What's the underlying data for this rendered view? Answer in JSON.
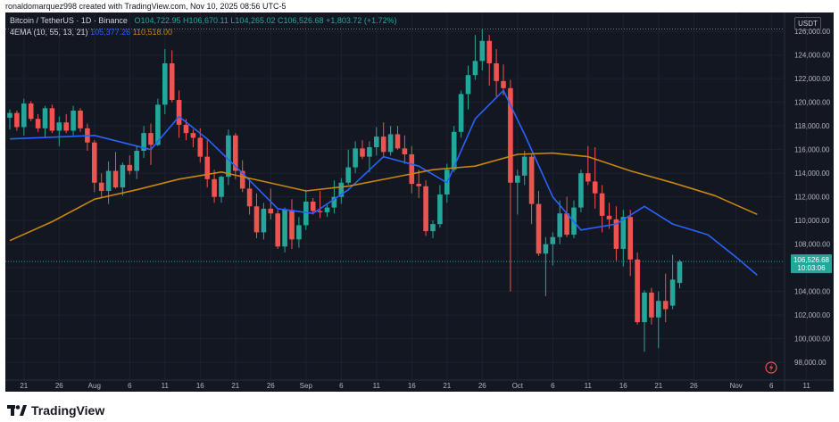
{
  "header": {
    "creator_line": "ronaldomarquez998 created with TradingView.com, Nov 10, 2025 08:56 UTC-5"
  },
  "legend": {
    "symbol": "Bitcoin / TetherUS · 1D · Binance",
    "open": "O104,722.95",
    "high": "H106,670.11",
    "low": "L104,265.02",
    "close": "C106,526.68",
    "change": "+1,803.72 (+1.72%)",
    "indicator": "4EMA (10, 55, 13, 21)",
    "ema_fast_value": "105,377.26",
    "ema_slow_value": "110,518.00"
  },
  "currency_button": "USDT",
  "price_label": {
    "price": "106,526.68",
    "countdown": "10:03:06"
  },
  "footer": {
    "brand": "TradingView"
  },
  "colors": {
    "background": "#131722",
    "up": "#26a69a",
    "down": "#ef5350",
    "ema_fast": "#2962ff",
    "ema_slow": "#c8860d",
    "grid": "#1e222d",
    "text": "#b2b5be"
  },
  "chart_data": {
    "type": "candlestick",
    "timeframe": "1D",
    "y_axis": {
      "min": 96500,
      "max": 127600,
      "ticks": [
        98000,
        100000,
        102000,
        104000,
        106000,
        108000,
        110000,
        112000,
        114000,
        116000,
        118000,
        120000,
        122000,
        124000,
        126000
      ],
      "tick_labels": [
        "98,000.00",
        "100,000.00",
        "102,000.00",
        "104,000.00",
        "106,000.00",
        "108,000.00",
        "110,000.00",
        "112,000.00",
        "114,000.00",
        "116,000.00",
        "118,000.00",
        "120,000.00",
        "122,000.00",
        "124,000.00",
        "126,000.00"
      ]
    },
    "x_axis": {
      "labels": [
        "21",
        "26",
        "Aug",
        "6",
        "11",
        "16",
        "21",
        "26",
        "Sep",
        "6",
        "11",
        "16",
        "21",
        "26",
        "Oct",
        "6",
        "11",
        "16",
        "21",
        "26",
        "Nov",
        "6",
        "11"
      ],
      "label_index": [
        2,
        7,
        12,
        17,
        22,
        27,
        32,
        37,
        42,
        47,
        52,
        57,
        62,
        67,
        72,
        77,
        82,
        87,
        92,
        97,
        103,
        108,
        113
      ]
    },
    "overlays": {
      "last_price_line": 106526.68,
      "high_reference_line": 126200
    },
    "candles": [
      [
        118700,
        119400,
        117700,
        119100
      ],
      [
        119100,
        119300,
        117600,
        117900
      ],
      [
        117900,
        120300,
        117200,
        119900
      ],
      [
        119900,
        120100,
        118400,
        118600
      ],
      [
        118600,
        119000,
        117500,
        117800
      ],
      [
        117800,
        119700,
        117000,
        119500
      ],
      [
        119500,
        119800,
        117400,
        117600
      ],
      [
        117600,
        118800,
        116300,
        118300
      ],
      [
        118300,
        119000,
        117400,
        117600
      ],
      [
        117600,
        119700,
        117200,
        119300
      ],
      [
        119300,
        119500,
        117500,
        117800
      ],
      [
        117800,
        118200,
        115900,
        116600
      ],
      [
        116600,
        116800,
        112400,
        113200
      ],
      [
        113200,
        114000,
        111900,
        112500
      ],
      [
        112500,
        115000,
        111400,
        114200
      ],
      [
        114200,
        115800,
        112700,
        112800
      ],
      [
        112800,
        114900,
        112100,
        114700
      ],
      [
        114700,
        115500,
        113900,
        114200
      ],
      [
        114200,
        116300,
        113500,
        115900
      ],
      [
        115900,
        118000,
        115300,
        117400
      ],
      [
        117400,
        118200,
        114700,
        116400
      ],
      [
        116400,
        120300,
        116300,
        119800
      ],
      [
        119800,
        124500,
        119000,
        123300
      ],
      [
        123300,
        124400,
        120000,
        120200
      ],
      [
        120200,
        121000,
        117000,
        118100
      ],
      [
        118100,
        118600,
        116800,
        117400
      ],
      [
        117400,
        117700,
        116200,
        117000
      ],
      [
        117000,
        117800,
        114900,
        115400
      ],
      [
        115400,
        116800,
        112800,
        113500
      ],
      [
        113500,
        114300,
        111500,
        112000
      ],
      [
        112000,
        113800,
        111500,
        113700
      ],
      [
        113700,
        117700,
        113000,
        117200
      ],
      [
        117200,
        117400,
        113500,
        114200
      ],
      [
        114200,
        115100,
        112400,
        112700
      ],
      [
        112700,
        113600,
        110500,
        111200
      ],
      [
        111200,
        112300,
        108500,
        109000
      ],
      [
        109000,
        111500,
        108400,
        111000
      ],
      [
        111000,
        112700,
        110100,
        110600
      ],
      [
        110600,
        110900,
        107600,
        107800
      ],
      [
        107800,
        111100,
        107300,
        110900
      ],
      [
        110900,
        111800,
        107600,
        108400
      ],
      [
        108400,
        110300,
        107700,
        109600
      ],
      [
        109600,
        112600,
        109200,
        111600
      ],
      [
        111600,
        111900,
        110500,
        110800
      ],
      [
        110800,
        112500,
        110200,
        110700
      ],
      [
        110700,
        111300,
        110300,
        111100
      ],
      [
        111100,
        113400,
        110600,
        112000
      ],
      [
        112000,
        113600,
        111400,
        113200
      ],
      [
        113200,
        116000,
        113000,
        114500
      ],
      [
        114500,
        116700,
        114000,
        116100
      ],
      [
        116100,
        116800,
        115200,
        115400
      ],
      [
        115400,
        116700,
        114100,
        116200
      ],
      [
        116200,
        117900,
        115500,
        117100
      ],
      [
        117100,
        118300,
        115300,
        115800
      ],
      [
        115800,
        118000,
        115500,
        117300
      ],
      [
        117300,
        118000,
        116000,
        116100
      ],
      [
        116100,
        117200,
        114800,
        115600
      ],
      [
        115600,
        116300,
        112300,
        113100
      ],
      [
        113100,
        114300,
        111900,
        112900
      ],
      [
        112900,
        113400,
        108700,
        109100
      ],
      [
        109100,
        110000,
        108500,
        109700
      ],
      [
        109700,
        113000,
        109400,
        112200
      ],
      [
        112200,
        114800,
        111500,
        114300
      ],
      [
        114300,
        118000,
        114100,
        117500
      ],
      [
        117500,
        121000,
        117000,
        120700
      ],
      [
        120700,
        123100,
        119400,
        122300
      ],
      [
        122300,
        125700,
        121900,
        123500
      ],
      [
        123500,
        126200,
        122700,
        125200
      ],
      [
        125200,
        125700,
        121400,
        123300
      ],
      [
        123300,
        124500,
        120500,
        121800
      ],
      [
        121800,
        123200,
        120600,
        121200
      ],
      [
        121200,
        121900,
        104000,
        113200
      ],
      [
        113200,
        114300,
        110500,
        113800
      ],
      [
        113800,
        115900,
        113000,
        115400
      ],
      [
        115400,
        115600,
        109700,
        111400
      ],
      [
        111400,
        112500,
        107000,
        107200
      ],
      [
        107200,
        108600,
        103600,
        108000
      ],
      [
        108000,
        109000,
        106200,
        108600
      ],
      [
        108600,
        111700,
        108000,
        110600
      ],
      [
        110600,
        112000,
        108600,
        108800
      ],
      [
        108800,
        111700,
        108500,
        111100
      ],
      [
        111100,
        114300,
        110700,
        114000
      ],
      [
        114000,
        116300,
        113000,
        113300
      ],
      [
        113300,
        116200,
        111000,
        112300
      ],
      [
        112300,
        113000,
        109000,
        110400
      ],
      [
        110400,
        111500,
        109300,
        110100
      ],
      [
        110100,
        111200,
        106600,
        107600
      ],
      [
        107600,
        110900,
        106100,
        110300
      ],
      [
        110300,
        110900,
        105300,
        106700
      ],
      [
        106700,
        107300,
        101200,
        101400
      ],
      [
        101400,
        104100,
        98900,
        103900
      ],
      [
        103900,
        104300,
        101200,
        101800
      ],
      [
        101800,
        104000,
        99200,
        103200
      ],
      [
        103200,
        105500,
        101400,
        102500
      ],
      [
        102800,
        107100,
        102500,
        105000
      ],
      [
        104722.95,
        106670.11,
        104265.02,
        106526.68
      ]
    ],
    "series": [
      {
        "name": "EMA fast",
        "value_label": "105,377.26",
        "points": [
          [
            0,
            116900
          ],
          [
            12,
            117200
          ],
          [
            20,
            116000
          ],
          [
            24,
            118800
          ],
          [
            28,
            116900
          ],
          [
            33,
            114000
          ],
          [
            38,
            111000
          ],
          [
            43,
            110600
          ],
          [
            48,
            112600
          ],
          [
            53,
            115400
          ],
          [
            58,
            114600
          ],
          [
            62,
            113200
          ],
          [
            66,
            118600
          ],
          [
            70,
            121000
          ],
          [
            73,
            117300
          ],
          [
            77,
            112000
          ],
          [
            81,
            109200
          ],
          [
            86,
            109700
          ],
          [
            90,
            111200
          ],
          [
            94,
            109700
          ],
          [
            99,
            108800
          ],
          [
            103,
            106900
          ],
          [
            106,
            105377
          ]
        ]
      },
      {
        "name": "EMA slow",
        "value_label": "110,518.00",
        "points": [
          [
            0,
            108300
          ],
          [
            6,
            109900
          ],
          [
            12,
            111800
          ],
          [
            18,
            112600
          ],
          [
            24,
            113500
          ],
          [
            30,
            114100
          ],
          [
            36,
            113300
          ],
          [
            42,
            112500
          ],
          [
            48,
            112900
          ],
          [
            54,
            113600
          ],
          [
            60,
            114300
          ],
          [
            66,
            114600
          ],
          [
            72,
            115600
          ],
          [
            77,
            115700
          ],
          [
            82,
            115400
          ],
          [
            88,
            114200
          ],
          [
            94,
            113200
          ],
          [
            100,
            112100
          ],
          [
            106,
            110518
          ]
        ]
      }
    ]
  }
}
